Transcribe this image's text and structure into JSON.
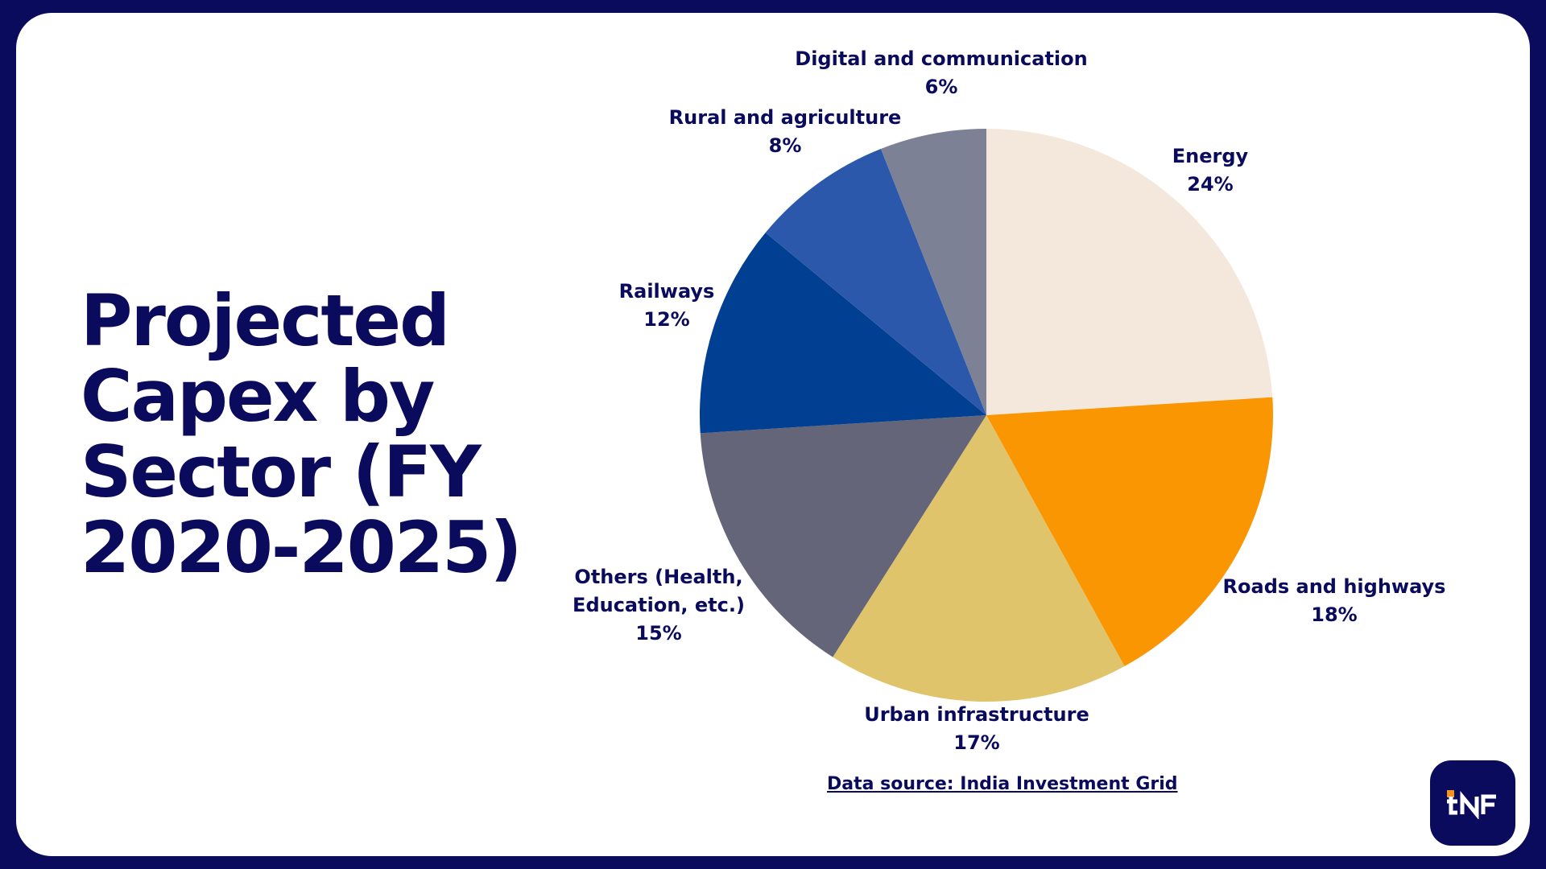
{
  "page_title": "Projected Capex by Sector (FY 2020-2025)",
  "source_label": "Data source: India Investment Grid",
  "logo": {
    "icon": "tnf-logo-icon",
    "bg": "#0b0b5e",
    "accent": "#f7941d",
    "text": "tNF"
  },
  "chart_data": {
    "type": "pie",
    "title": "Projected Capex by Sector (FY 2020-2025)",
    "legend": "none (data labels beside slices)",
    "slices": [
      {
        "label": "Energy",
        "value": 24,
        "value_label": "24%",
        "color": "#f4e8dc"
      },
      {
        "label": "Roads and highways",
        "value": 18,
        "value_label": "18%",
        "color": "#fb9603"
      },
      {
        "label": "Urban infrastructure",
        "value": 17,
        "value_label": "17%",
        "color": "#dfc46c"
      },
      {
        "label": "Others (Health, Education, etc.)",
        "label_lines": [
          "Others (Health,",
          "Education, etc.)"
        ],
        "value": 15,
        "value_label": "15%",
        "color": "#646578"
      },
      {
        "label": "Railways",
        "value": 12,
        "value_label": "12%",
        "color": "#013f93"
      },
      {
        "label": "Rural and agriculture",
        "value": 8,
        "value_label": "8%",
        "color": "#2b58aa"
      },
      {
        "label": "Digital and communication",
        "value": 6,
        "value_label": "6%",
        "color": "#7d8196"
      }
    ]
  }
}
